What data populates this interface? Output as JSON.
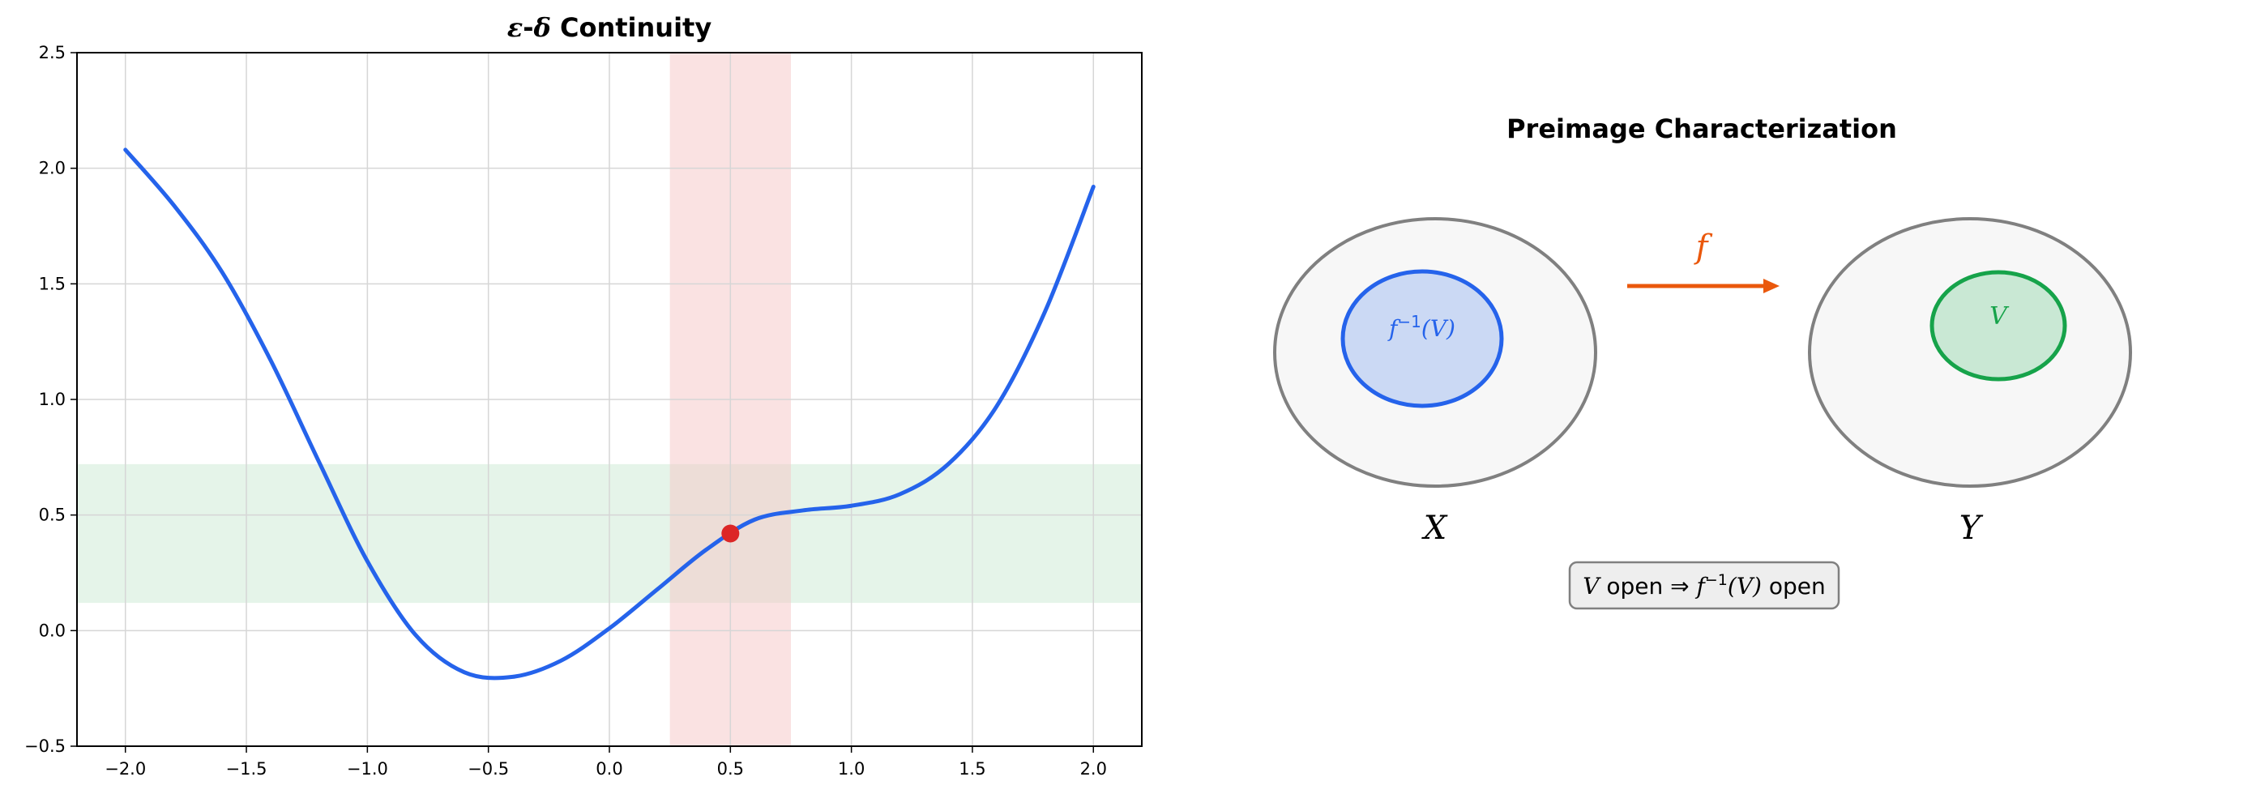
{
  "left_panel": {
    "title_parts": [
      "ε",
      "-",
      "δ",
      " Continuity"
    ],
    "chart_data": {
      "type": "line",
      "title": "ε-δ Continuity",
      "xlabel": "",
      "ylabel": "",
      "xlim": [
        -2.2,
        2.2
      ],
      "ylim": [
        -0.5,
        2.5
      ],
      "xticks": [
        "−2.0",
        "−1.5",
        "−1.0",
        "−0.5",
        "0.0",
        "0.5",
        "1.0",
        "1.5",
        "2.0"
      ],
      "yticks": [
        "−0.5",
        "0.0",
        "0.5",
        "1.0",
        "1.5",
        "2.0",
        "2.5"
      ],
      "xtick_values": [
        -2.0,
        -1.5,
        -1.0,
        -0.5,
        0.0,
        0.5,
        1.0,
        1.5,
        2.0
      ],
      "ytick_values": [
        -0.5,
        0.0,
        0.5,
        1.0,
        1.5,
        2.0,
        2.5
      ],
      "grid": true,
      "series": [
        {
          "x": [
            -2.0,
            -1.8,
            -1.6,
            -1.4,
            -1.2,
            -1.0,
            -0.8,
            -0.6,
            -0.4,
            -0.2,
            0.0,
            0.2,
            0.4,
            0.6,
            0.8,
            1.0,
            1.2,
            1.4,
            1.6,
            1.8,
            2.0
          ],
          "y": [
            2.08,
            1.84,
            1.55,
            1.17,
            0.73,
            0.3,
            -0.02,
            -0.18,
            -0.2,
            -0.13,
            0.01,
            0.18,
            0.35,
            0.48,
            0.52,
            0.54,
            0.59,
            0.72,
            0.97,
            1.38,
            1.92
          ],
          "color": "#2563eb"
        }
      ],
      "highlight_point": {
        "x": 0.5,
        "y": 0.42,
        "color": "#dc2626"
      },
      "delta_band": {
        "x": [
          0.25,
          0.75
        ],
        "color": "#f6c6c6"
      },
      "epsilon_band": {
        "y": [
          0.12,
          0.72
        ],
        "color": "#c6e6cf"
      }
    }
  },
  "right_panel": {
    "title": "Preimage Characterization",
    "map_label": "f",
    "x_label": "X",
    "y_label": "Y",
    "preimage_label_f": "f",
    "preimage_label_sup": "−1",
    "preimage_label_arg": "(V)",
    "v_label": "V",
    "statement": {
      "v": "V",
      "open1": " open ",
      "arrow": "⇒",
      "f": " f",
      "sup": "−1",
      "arg": "(V)",
      "open2": " open"
    },
    "colors": {
      "set_fill": "#f7f7f7",
      "set_stroke": "#808080",
      "preimage_fill": "#cbd9f4",
      "preimage_stroke": "#2563eb",
      "v_fill": "#c9e8d4",
      "v_stroke": "#16a34a",
      "arrow": "#ea580c"
    }
  }
}
